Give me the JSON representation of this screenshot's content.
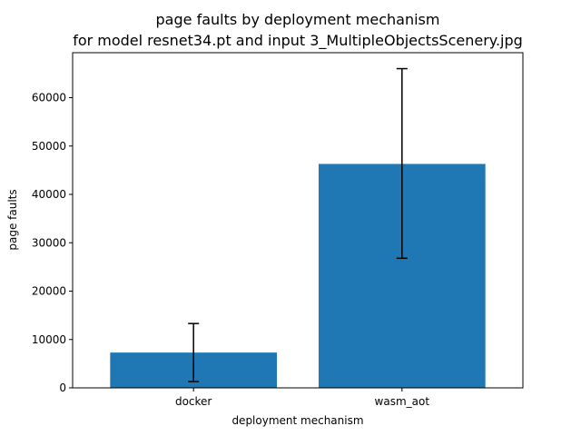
{
  "chart_data": {
    "type": "bar",
    "title": "page faults by deployment mechanism",
    "subtitle": "for model resnet34.pt and input 3_MultipleObjectsScenery.jpg",
    "xlabel": "deployment mechanism",
    "ylabel": "page faults",
    "categories": [
      "docker",
      "wasm_aot"
    ],
    "values": [
      7300,
      46300
    ],
    "error_low": [
      1300,
      26800
    ],
    "error_high": [
      13300,
      66000
    ],
    "ylim": [
      0,
      69300
    ],
    "yticks": [
      0,
      10000,
      20000,
      30000,
      40000,
      50000,
      60000
    ],
    "ytick_labels": [
      "0",
      "10000",
      "20000",
      "30000",
      "40000",
      "50000",
      "60000"
    ],
    "bar_color": "#1f77b4",
    "grid": false
  }
}
